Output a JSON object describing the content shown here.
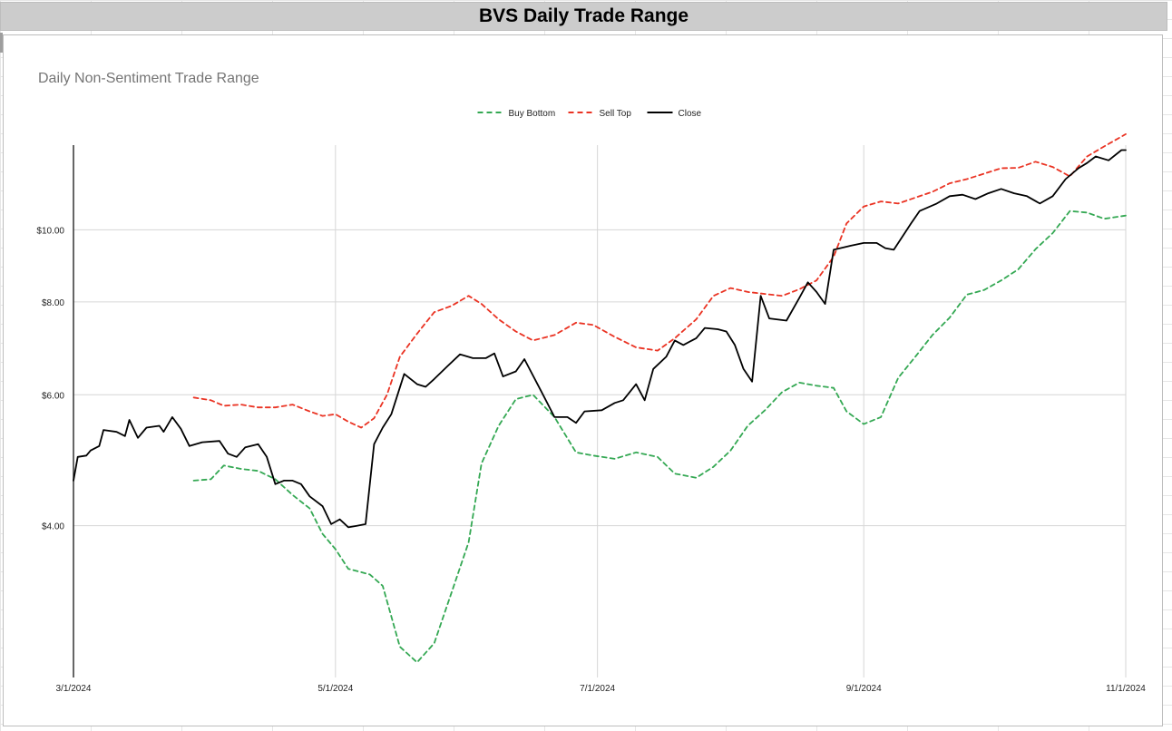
{
  "sheet": {
    "title": "BVS Daily Trade Range"
  },
  "chart_data": {
    "type": "line",
    "title": "Daily Non-Sentiment Trade Range",
    "xlabel": "",
    "ylabel": "",
    "y_scale": "log",
    "xlim": [
      "2024-03-01",
      "2024-11-01"
    ],
    "ylim": [
      2.5,
      13
    ],
    "x_ticks": [
      "3/1/2024",
      "5/1/2024",
      "7/1/2024",
      "9/1/2024",
      "11/1/2024"
    ],
    "x_tick_dates": [
      "2024-03-01",
      "2024-05-01",
      "2024-07-01",
      "2024-09-01",
      "2024-11-01"
    ],
    "y_ticks": [
      4,
      6,
      8,
      10
    ],
    "y_tick_labels": [
      "$4.00",
      "$6.00",
      "$8.00",
      "$10.00"
    ],
    "grid": true,
    "legend_position": "top",
    "series": [
      {
        "name": "Buy Bottom",
        "color": "#34a853",
        "dash": true,
        "points": [
          [
            "2024-03-29",
            4.6
          ],
          [
            "2024-04-02",
            4.62
          ],
          [
            "2024-04-05",
            4.82
          ],
          [
            "2024-04-09",
            4.77
          ],
          [
            "2024-04-13",
            4.74
          ],
          [
            "2024-04-17",
            4.62
          ],
          [
            "2024-04-21",
            4.4
          ],
          [
            "2024-04-25",
            4.22
          ],
          [
            "2024-04-28",
            3.9
          ],
          [
            "2024-05-01",
            3.72
          ],
          [
            "2024-05-04",
            3.5
          ],
          [
            "2024-05-09",
            3.44
          ],
          [
            "2024-05-12",
            3.32
          ],
          [
            "2024-05-16",
            2.75
          ],
          [
            "2024-05-20",
            2.62
          ],
          [
            "2024-05-24",
            2.78
          ],
          [
            "2024-05-28",
            3.25
          ],
          [
            "2024-06-01",
            3.8
          ],
          [
            "2024-06-04",
            4.85
          ],
          [
            "2024-06-08",
            5.45
          ],
          [
            "2024-06-12",
            5.92
          ],
          [
            "2024-06-16",
            6.0
          ],
          [
            "2024-06-21",
            5.6
          ],
          [
            "2024-06-26",
            5.02
          ],
          [
            "2024-06-30",
            4.97
          ],
          [
            "2024-07-05",
            4.92
          ],
          [
            "2024-07-10",
            5.02
          ],
          [
            "2024-07-15",
            4.95
          ],
          [
            "2024-07-19",
            4.7
          ],
          [
            "2024-07-24",
            4.64
          ],
          [
            "2024-07-28",
            4.8
          ],
          [
            "2024-08-01",
            5.05
          ],
          [
            "2024-08-05",
            5.45
          ],
          [
            "2024-08-09",
            5.72
          ],
          [
            "2024-08-13",
            6.05
          ],
          [
            "2024-08-17",
            6.23
          ],
          [
            "2024-08-21",
            6.17
          ],
          [
            "2024-08-25",
            6.13
          ],
          [
            "2024-08-28",
            5.7
          ],
          [
            "2024-09-01",
            5.48
          ],
          [
            "2024-09-05",
            5.6
          ],
          [
            "2024-09-09",
            6.32
          ],
          [
            "2024-09-13",
            6.75
          ],
          [
            "2024-09-17",
            7.22
          ],
          [
            "2024-09-21",
            7.62
          ],
          [
            "2024-09-25",
            8.18
          ],
          [
            "2024-09-29",
            8.3
          ],
          [
            "2024-10-03",
            8.55
          ],
          [
            "2024-10-07",
            8.85
          ],
          [
            "2024-10-11",
            9.42
          ],
          [
            "2024-10-15",
            9.9
          ],
          [
            "2024-10-19",
            10.6
          ],
          [
            "2024-10-23",
            10.55
          ],
          [
            "2024-10-27",
            10.35
          ],
          [
            "2024-11-01",
            10.45
          ]
        ]
      },
      {
        "name": "Sell Top",
        "color": "#ea3323",
        "dash": true,
        "points": [
          [
            "2024-03-29",
            5.95
          ],
          [
            "2024-04-02",
            5.9
          ],
          [
            "2024-04-05",
            5.8
          ],
          [
            "2024-04-09",
            5.82
          ],
          [
            "2024-04-13",
            5.77
          ],
          [
            "2024-04-17",
            5.77
          ],
          [
            "2024-04-21",
            5.82
          ],
          [
            "2024-04-25",
            5.7
          ],
          [
            "2024-04-28",
            5.62
          ],
          [
            "2024-05-01",
            5.65
          ],
          [
            "2024-05-04",
            5.52
          ],
          [
            "2024-05-07",
            5.42
          ],
          [
            "2024-05-10",
            5.58
          ],
          [
            "2024-05-13",
            6.0
          ],
          [
            "2024-05-16",
            6.75
          ],
          [
            "2024-05-20",
            7.25
          ],
          [
            "2024-05-24",
            7.75
          ],
          [
            "2024-05-28",
            7.9
          ],
          [
            "2024-06-01",
            8.15
          ],
          [
            "2024-06-04",
            7.95
          ],
          [
            "2024-06-08",
            7.58
          ],
          [
            "2024-06-12",
            7.3
          ],
          [
            "2024-06-16",
            7.1
          ],
          [
            "2024-06-21",
            7.22
          ],
          [
            "2024-06-26",
            7.5
          ],
          [
            "2024-06-30",
            7.45
          ],
          [
            "2024-07-05",
            7.18
          ],
          [
            "2024-07-10",
            6.95
          ],
          [
            "2024-07-15",
            6.88
          ],
          [
            "2024-07-19",
            7.15
          ],
          [
            "2024-07-24",
            7.58
          ],
          [
            "2024-07-28",
            8.15
          ],
          [
            "2024-08-01",
            8.35
          ],
          [
            "2024-08-05",
            8.25
          ],
          [
            "2024-08-09",
            8.2
          ],
          [
            "2024-08-13",
            8.15
          ],
          [
            "2024-08-17",
            8.32
          ],
          [
            "2024-08-21",
            8.55
          ],
          [
            "2024-08-25",
            9.2
          ],
          [
            "2024-08-28",
            10.2
          ],
          [
            "2024-09-01",
            10.75
          ],
          [
            "2024-09-05",
            10.92
          ],
          [
            "2024-09-09",
            10.85
          ],
          [
            "2024-09-13",
            11.05
          ],
          [
            "2024-09-17",
            11.25
          ],
          [
            "2024-09-21",
            11.55
          ],
          [
            "2024-09-25",
            11.7
          ],
          [
            "2024-09-29",
            11.9
          ],
          [
            "2024-10-03",
            12.1
          ],
          [
            "2024-10-07",
            12.12
          ],
          [
            "2024-10-11",
            12.35
          ],
          [
            "2024-10-15",
            12.15
          ],
          [
            "2024-10-19",
            11.8
          ],
          [
            "2024-10-23",
            12.55
          ],
          [
            "2024-10-27",
            12.95
          ],
          [
            "2024-11-01",
            13.45
          ]
        ]
      },
      {
        "name": "Close",
        "color": "#000000",
        "dash": false,
        "points": [
          [
            "2024-03-01",
            4.6
          ],
          [
            "2024-03-02",
            4.95
          ],
          [
            "2024-03-04",
            4.97
          ],
          [
            "2024-03-05",
            5.05
          ],
          [
            "2024-03-07",
            5.12
          ],
          [
            "2024-03-08",
            5.38
          ],
          [
            "2024-03-11",
            5.35
          ],
          [
            "2024-03-13",
            5.28
          ],
          [
            "2024-03-14",
            5.55
          ],
          [
            "2024-03-16",
            5.25
          ],
          [
            "2024-03-18",
            5.42
          ],
          [
            "2024-03-21",
            5.45
          ],
          [
            "2024-03-22",
            5.35
          ],
          [
            "2024-03-24",
            5.6
          ],
          [
            "2024-03-26",
            5.4
          ],
          [
            "2024-03-28",
            5.12
          ],
          [
            "2024-03-31",
            5.18
          ],
          [
            "2024-04-04",
            5.2
          ],
          [
            "2024-04-06",
            5.0
          ],
          [
            "2024-04-08",
            4.95
          ],
          [
            "2024-04-10",
            5.1
          ],
          [
            "2024-04-13",
            5.15
          ],
          [
            "2024-04-15",
            4.95
          ],
          [
            "2024-04-17",
            4.55
          ],
          [
            "2024-04-19",
            4.6
          ],
          [
            "2024-04-21",
            4.6
          ],
          [
            "2024-04-23",
            4.55
          ],
          [
            "2024-04-25",
            4.38
          ],
          [
            "2024-04-28",
            4.25
          ],
          [
            "2024-04-30",
            4.02
          ],
          [
            "2024-05-02",
            4.08
          ],
          [
            "2024-05-04",
            3.98
          ],
          [
            "2024-05-06",
            4.0
          ],
          [
            "2024-05-08",
            4.02
          ],
          [
            "2024-05-10",
            5.15
          ],
          [
            "2024-05-12",
            5.42
          ],
          [
            "2024-05-14",
            5.65
          ],
          [
            "2024-05-17",
            6.4
          ],
          [
            "2024-05-20",
            6.2
          ],
          [
            "2024-05-22",
            6.15
          ],
          [
            "2024-05-24",
            6.3
          ],
          [
            "2024-05-27",
            6.55
          ],
          [
            "2024-05-30",
            6.8
          ],
          [
            "2024-06-02",
            6.72
          ],
          [
            "2024-06-05",
            6.72
          ],
          [
            "2024-06-07",
            6.82
          ],
          [
            "2024-06-09",
            6.35
          ],
          [
            "2024-06-12",
            6.45
          ],
          [
            "2024-06-14",
            6.7
          ],
          [
            "2024-06-18",
            6.05
          ],
          [
            "2024-06-21",
            5.6
          ],
          [
            "2024-06-24",
            5.6
          ],
          [
            "2024-06-26",
            5.5
          ],
          [
            "2024-06-28",
            5.7
          ],
          [
            "2024-07-02",
            5.72
          ],
          [
            "2024-07-05",
            5.85
          ],
          [
            "2024-07-07",
            5.9
          ],
          [
            "2024-07-10",
            6.2
          ],
          [
            "2024-07-12",
            5.9
          ],
          [
            "2024-07-14",
            6.5
          ],
          [
            "2024-07-17",
            6.75
          ],
          [
            "2024-07-19",
            7.1
          ],
          [
            "2024-07-21",
            7.0
          ],
          [
            "2024-07-24",
            7.15
          ],
          [
            "2024-07-26",
            7.38
          ],
          [
            "2024-07-29",
            7.35
          ],
          [
            "2024-07-31",
            7.3
          ],
          [
            "2024-08-02",
            7.0
          ],
          [
            "2024-08-04",
            6.5
          ],
          [
            "2024-08-06",
            6.25
          ],
          [
            "2024-08-08",
            8.15
          ],
          [
            "2024-08-10",
            7.6
          ],
          [
            "2024-08-14",
            7.55
          ],
          [
            "2024-08-17",
            8.1
          ],
          [
            "2024-08-19",
            8.5
          ],
          [
            "2024-08-21",
            8.25
          ],
          [
            "2024-08-23",
            7.95
          ],
          [
            "2024-08-25",
            9.4
          ],
          [
            "2024-08-29",
            9.52
          ],
          [
            "2024-09-01",
            9.6
          ],
          [
            "2024-09-04",
            9.6
          ],
          [
            "2024-09-06",
            9.45
          ],
          [
            "2024-09-08",
            9.4
          ],
          [
            "2024-09-12",
            10.2
          ],
          [
            "2024-09-14",
            10.6
          ],
          [
            "2024-09-18",
            10.85
          ],
          [
            "2024-09-21",
            11.1
          ],
          [
            "2024-09-24",
            11.15
          ],
          [
            "2024-09-27",
            11.0
          ],
          [
            "2024-09-30",
            11.2
          ],
          [
            "2024-10-03",
            11.35
          ],
          [
            "2024-10-06",
            11.2
          ],
          [
            "2024-10-09",
            11.1
          ],
          [
            "2024-10-12",
            10.85
          ],
          [
            "2024-10-15",
            11.1
          ],
          [
            "2024-10-18",
            11.7
          ],
          [
            "2024-10-21",
            12.1
          ],
          [
            "2024-10-23",
            12.3
          ],
          [
            "2024-10-25",
            12.55
          ],
          [
            "2024-10-28",
            12.4
          ],
          [
            "2024-10-31",
            12.8
          ],
          [
            "2024-11-01",
            12.8
          ]
        ]
      }
    ]
  }
}
